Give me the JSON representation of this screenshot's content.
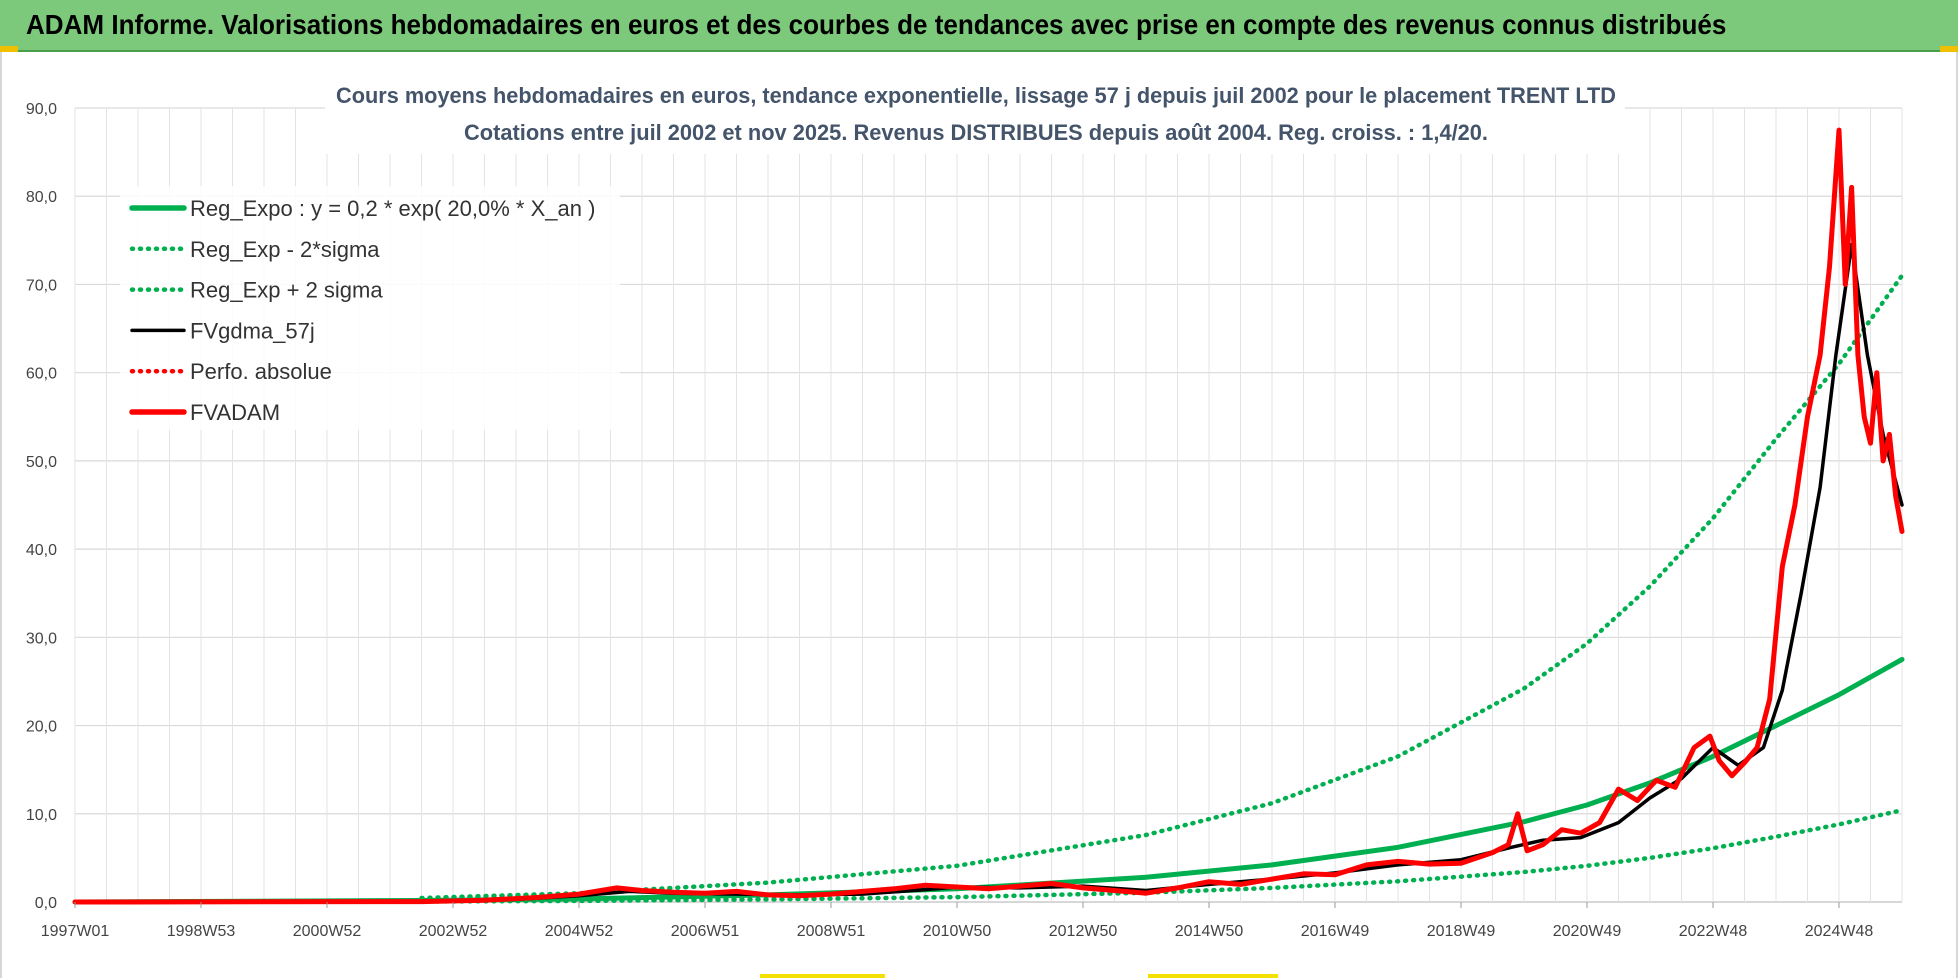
{
  "page": {
    "banner_title": "ADAM Informe. Valorisations hebdomadaires en euros et des courbes de tendances avec prise en compte des revenus connus distribués",
    "banner_color": "#7dc97b"
  },
  "chart_data": {
    "type": "line",
    "title": "Cours moyens hebdomadaires en euros, tendance exponentielle, lissage 57 j depuis juil 2002 pour le placement TRENT LTD",
    "subtitle": "Cotations entre juil 2002 et nov 2025. Revenus DISTRIBUES depuis août 2004. Reg. croiss. : 1,4/20.",
    "xlabel": "",
    "ylabel": "",
    "x_range": [
      1997.0,
      2026.0
    ],
    "ylim": [
      0,
      90
    ],
    "y_ticks": [
      "0,0",
      "10,0",
      "20,0",
      "30,0",
      "40,0",
      "50,0",
      "60,0",
      "70,0",
      "80,0",
      "90,0"
    ],
    "x_ticks": [
      {
        "label": "1997W01",
        "x": 1997.0
      },
      {
        "label": "1998W53",
        "x": 1999.0
      },
      {
        "label": "2000W52",
        "x": 2001.0
      },
      {
        "label": "2002W52",
        "x": 2003.0
      },
      {
        "label": "2004W52",
        "x": 2005.0
      },
      {
        "label": "2006W51",
        "x": 2007.0
      },
      {
        "label": "2008W51",
        "x": 2009.0
      },
      {
        "label": "2010W50",
        "x": 2011.0
      },
      {
        "label": "2012W50",
        "x": 2013.0
      },
      {
        "label": "2014W50",
        "x": 2015.0
      },
      {
        "label": "2016W49",
        "x": 2017.0
      },
      {
        "label": "2018W49",
        "x": 2019.0
      },
      {
        "label": "2020W49",
        "x": 2021.0
      },
      {
        "label": "2022W48",
        "x": 2023.0
      },
      {
        "label": "2024W48",
        "x": 2025.0
      }
    ],
    "grid": true,
    "legend_position": "top-left",
    "series": [
      {
        "name": "Reg_Expo : y = 0,2 * exp( 20,0% *  X_an )",
        "color": "#00b050",
        "style": "solid-thick",
        "x": [
          1997.0,
          2002.5,
          2005,
          2008,
          2011,
          2014,
          2016,
          2018,
          2020,
          2021,
          2022,
          2023,
          2024,
          2025,
          2026.0
        ],
        "y": [
          0.0,
          0.17,
          0.35,
          0.8,
          1.5,
          2.8,
          4.2,
          6.2,
          9.1,
          11.0,
          13.5,
          16.5,
          20.0,
          23.5,
          27.5
        ]
      },
      {
        "name": "Reg_Exp - 2*sigma",
        "color": "#00b050",
        "style": "dotted",
        "x": [
          2002.5,
          2005,
          2008,
          2011,
          2014,
          2016,
          2018,
          2020,
          2021,
          2022,
          2023,
          2024,
          2025,
          2026.0
        ],
        "y": [
          0.06,
          0.13,
          0.3,
          0.55,
          1.05,
          1.6,
          2.35,
          3.4,
          4.1,
          5.0,
          6.1,
          7.4,
          8.8,
          10.4
        ]
      },
      {
        "name": "Reg_Exp + 2 sigma",
        "color": "#00b050",
        "style": "dotted",
        "x": [
          2002.5,
          2005,
          2008,
          2011,
          2014,
          2016,
          2018,
          2020,
          2021,
          2022,
          2023,
          2024,
          2025,
          2026.0
        ],
        "y": [
          0.45,
          1.0,
          2.2,
          4.1,
          7.6,
          11.2,
          16.5,
          24.2,
          29.3,
          35.8,
          43.5,
          52.5,
          61.0,
          71.0
        ]
      },
      {
        "name": "FVgdma_57j",
        "color": "#000000",
        "style": "solid",
        "x": [
          1997.0,
          2002.5,
          2004,
          2005,
          2005.8,
          2006.5,
          2007.5,
          2008.5,
          2009.5,
          2010.5,
          2011,
          2012,
          2013,
          2014,
          2015,
          2016,
          2017,
          2018,
          2019,
          2019.8,
          2020.3,
          2020.9,
          2021.5,
          2022,
          2022.5,
          2023,
          2023.4,
          2023.8,
          2024.1,
          2024.4,
          2024.7,
          2024.95,
          2025.2,
          2025.45,
          2025.7,
          2026.0
        ],
        "y": [
          0.0,
          0.05,
          0.3,
          0.7,
          1.2,
          1.0,
          0.9,
          0.8,
          0.9,
          1.4,
          1.7,
          1.6,
          1.8,
          1.3,
          2.0,
          2.6,
          3.3,
          4.2,
          4.8,
          6.2,
          7.0,
          7.3,
          9.0,
          11.8,
          14.0,
          17.5,
          15.5,
          17.5,
          24.0,
          35.0,
          47.0,
          62.0,
          74.5,
          62.0,
          53.0,
          45.0
        ]
      },
      {
        "name": "Perfo. absolue",
        "color": "#ff0000",
        "style": "dotted",
        "x": [],
        "y": []
      },
      {
        "name": "FVADAM",
        "color": "#ff0000",
        "style": "solid-thick",
        "x": [
          1997.0,
          2002.5,
          2003.5,
          2004.3,
          2005,
          2005.6,
          2006.0,
          2006.5,
          2007.0,
          2007.5,
          2008.0,
          2008.5,
          2009.0,
          2009.5,
          2010.0,
          2010.5,
          2011.0,
          2011.5,
          2012.0,
          2012.5,
          2013.0,
          2013.5,
          2014.0,
          2014.5,
          2015.0,
          2015.5,
          2016.0,
          2016.5,
          2017.0,
          2017.5,
          2018.0,
          2018.5,
          2019.0,
          2019.5,
          2019.75,
          2019.9,
          2020.05,
          2020.3,
          2020.6,
          2020.9,
          2021.2,
          2021.5,
          2021.8,
          2022.1,
          2022.4,
          2022.7,
          2022.95,
          2023.1,
          2023.3,
          2023.5,
          2023.7,
          2023.9,
          2024.1,
          2024.3,
          2024.5,
          2024.7,
          2024.85,
          2025.0,
          2025.1,
          2025.2,
          2025.3,
          2025.4,
          2025.5,
          2025.6,
          2025.7,
          2025.8,
          2025.9,
          2026.0
        ],
        "y": [
          0.0,
          0.05,
          0.2,
          0.5,
          0.9,
          1.6,
          1.3,
          1.1,
          1.0,
          1.2,
          0.8,
          0.7,
          0.9,
          1.2,
          1.5,
          1.9,
          1.7,
          1.5,
          1.8,
          2.1,
          1.6,
          1.3,
          1.0,
          1.6,
          2.3,
          2.0,
          2.6,
          3.2,
          3.1,
          4.2,
          4.6,
          4.3,
          4.4,
          5.6,
          6.5,
          10.0,
          5.8,
          6.5,
          8.2,
          7.8,
          9.0,
          12.8,
          11.5,
          13.8,
          13.0,
          17.5,
          18.8,
          16.0,
          14.3,
          15.8,
          17.5,
          23.0,
          38.0,
          45.0,
          55.0,
          62.0,
          72.0,
          87.5,
          70.0,
          81.0,
          62.0,
          55.0,
          52.0,
          60.0,
          50.0,
          53.0,
          46.0,
          42.0
        ]
      }
    ]
  }
}
